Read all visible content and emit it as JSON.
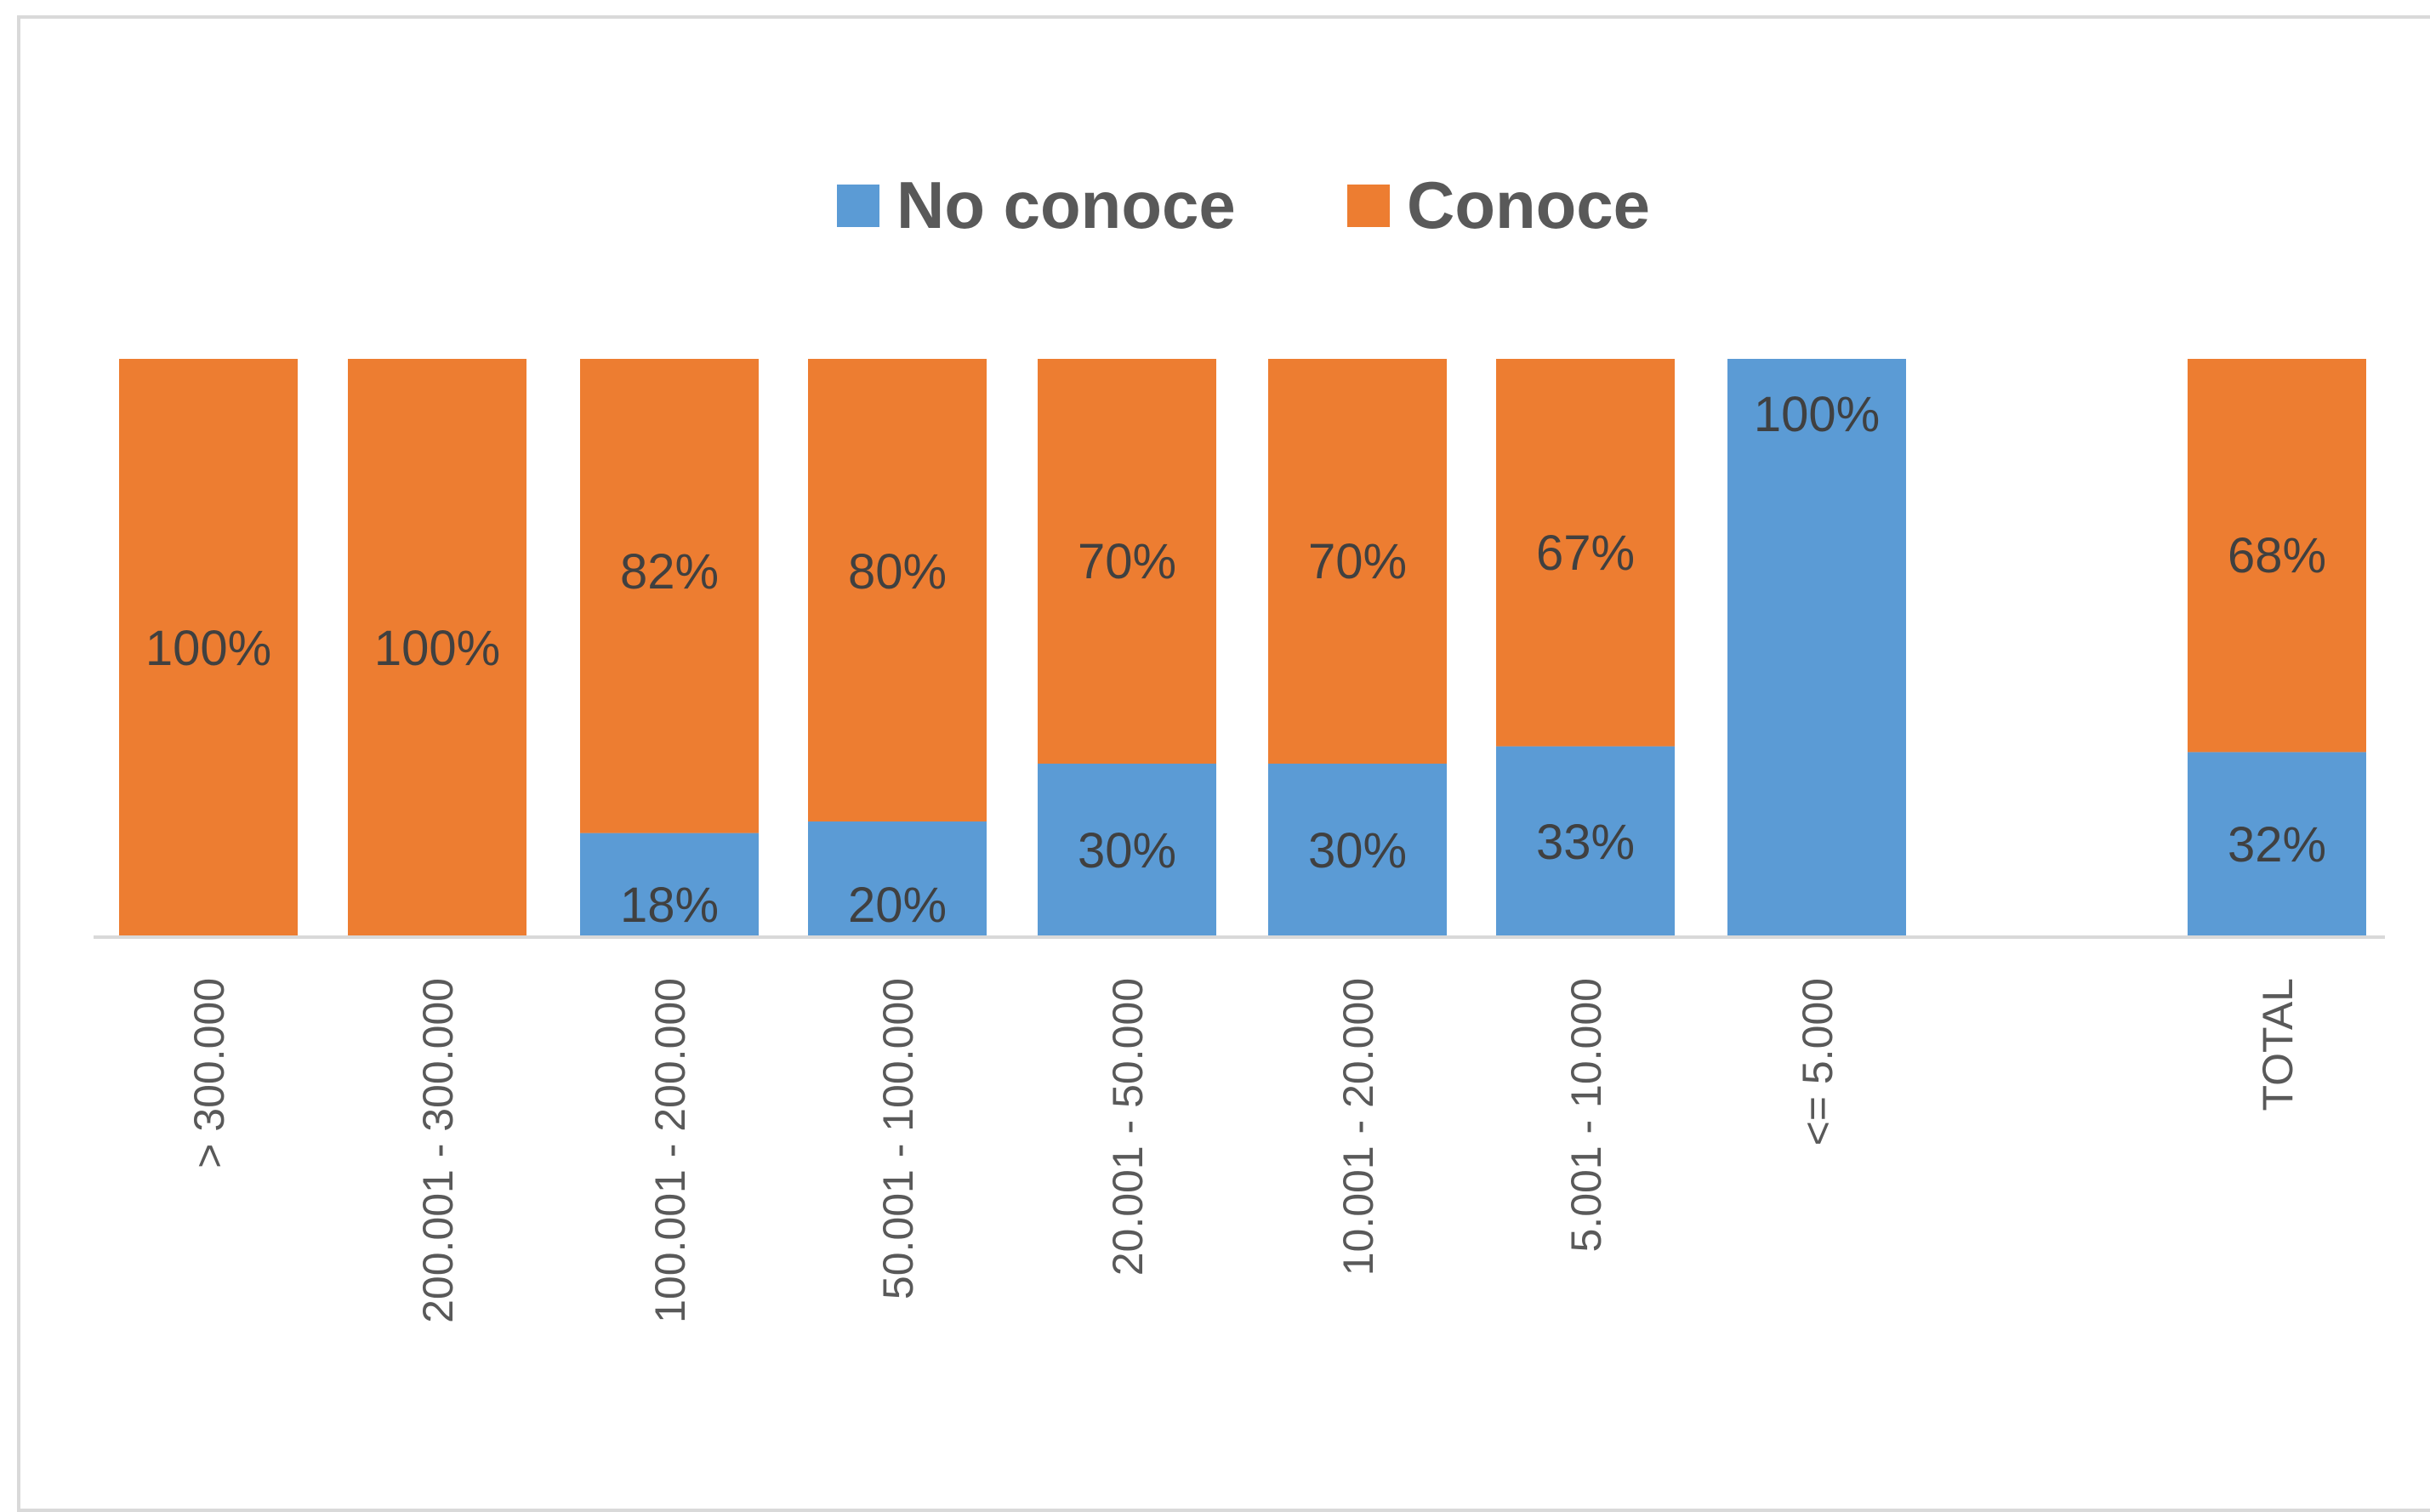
{
  "chart_data": {
    "type": "bar",
    "stacked": true,
    "percent_stacked": true,
    "categories": [
      "> 300.000",
      "200.001 - 300.000",
      "100.001 - 200.000",
      "50.001 - 100.000",
      "20.001 - 50.000",
      "10.001 - 20.000",
      "5.001 - 10.000",
      "<= 5.000",
      "",
      "TOTAL"
    ],
    "series": [
      {
        "name": "No conoce",
        "color": "#5b9bd5",
        "values": [
          0,
          0,
          18,
          20,
          30,
          30,
          33,
          100,
          null,
          32
        ],
        "labels": [
          "",
          "",
          "18%",
          "20%",
          "30%",
          "30%",
          "33%",
          "100%",
          "",
          "32%"
        ]
      },
      {
        "name": "Conoce",
        "color": "#ed7d31",
        "values": [
          100,
          100,
          82,
          80,
          70,
          70,
          67,
          0,
          null,
          68
        ],
        "labels": [
          "100%",
          "100%",
          "82%",
          "80%",
          "70%",
          "70%",
          "67%",
          "",
          "",
          "68%"
        ]
      }
    ],
    "ylim": [
      0,
      100
    ],
    "grid": false,
    "legend": "top-center",
    "title": "",
    "xlabel": "",
    "ylabel": ""
  }
}
